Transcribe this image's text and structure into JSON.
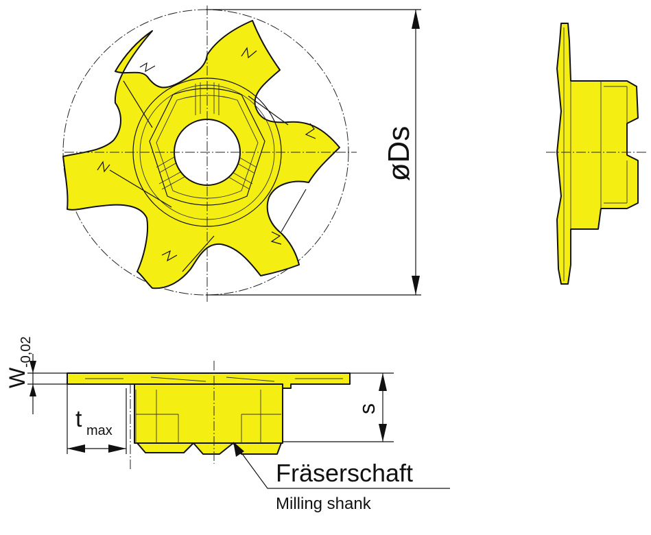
{
  "colors": {
    "part_fill": "#f5ee12",
    "line": "#111111",
    "background": "#ffffff"
  },
  "labels": {
    "diameter": "øDs",
    "width_symbol": "W",
    "width_tolerance": "-0,02",
    "depth_symbol": "t",
    "depth_subscript": "max",
    "shank_dim": "s",
    "shank_de": "Fräserschaft",
    "shank_en": "Milling shank"
  }
}
